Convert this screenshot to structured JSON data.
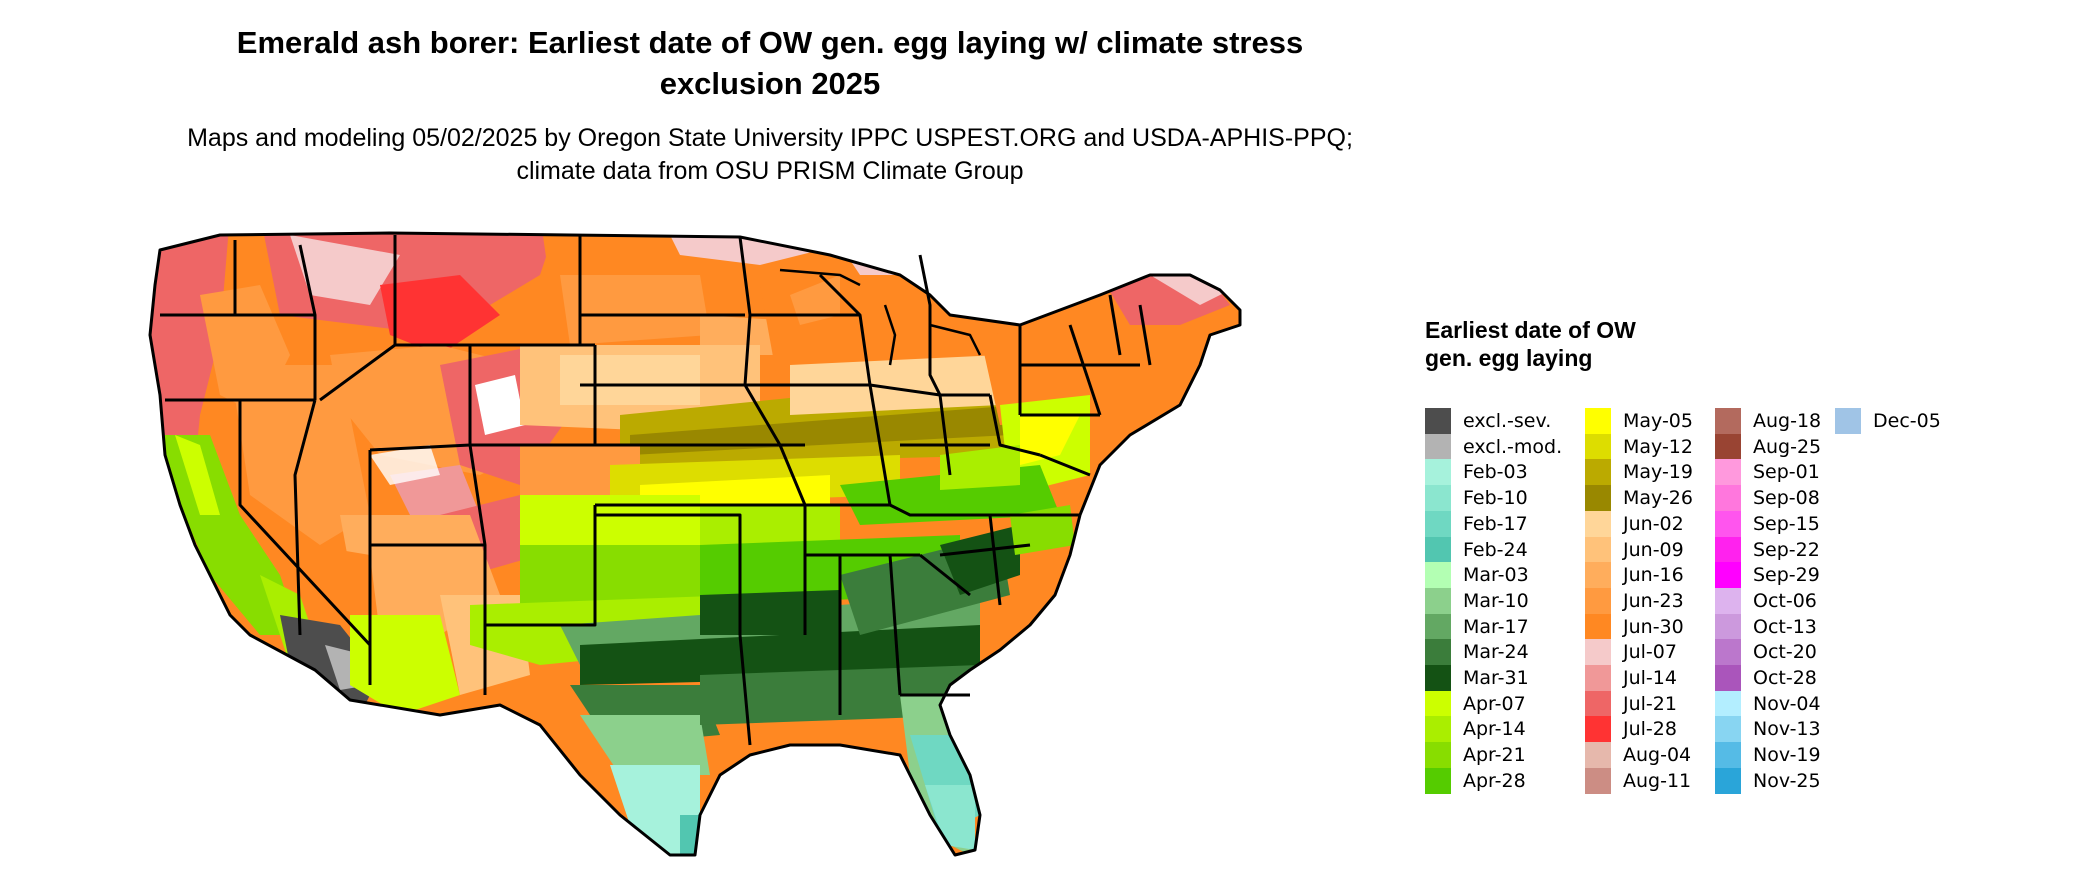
{
  "title": "Emerald ash borer: Earliest date of OW gen. egg laying w/ climate stress exclusion 2025",
  "subtitle": "Maps and modeling 05/02/2025 by Oregon State University IPPC USPEST.ORG and USDA-APHIS-PPQ; climate data from OSU PRISM Climate Group",
  "legend": {
    "title": "Earliest date of OW gen. egg laying",
    "columns": [
      [
        {
          "label": "excl.-sev.",
          "color": "#4d4d4d"
        },
        {
          "label": "excl.-mod.",
          "color": "#b3b3b3"
        },
        {
          "label": "Feb-03",
          "color": "#a6f2dc"
        },
        {
          "label": "Feb-10",
          "color": "#8be6cf"
        },
        {
          "label": "Feb-17",
          "color": "#6fd8c2"
        },
        {
          "label": "Feb-24",
          "color": "#52c6b0"
        },
        {
          "label": "Mar-03",
          "color": "#b3ffb3"
        },
        {
          "label": "Mar-10",
          "color": "#8cd08c"
        },
        {
          "label": "Mar-17",
          "color": "#63a863"
        },
        {
          "label": "Mar-24",
          "color": "#3b7d3b"
        },
        {
          "label": "Mar-31",
          "color": "#145214"
        },
        {
          "label": "Apr-07",
          "color": "#ccff00"
        },
        {
          "label": "Apr-14",
          "color": "#aaee00"
        },
        {
          "label": "Apr-21",
          "color": "#88dd00"
        },
        {
          "label": "Apr-28",
          "color": "#55cc00"
        }
      ],
      [
        {
          "label": "May-05",
          "color": "#ffff00"
        },
        {
          "label": "May-12",
          "color": "#dddd00"
        },
        {
          "label": "May-19",
          "color": "#bbaa00"
        },
        {
          "label": "May-26",
          "color": "#998800"
        },
        {
          "label": "Jun-02",
          "color": "#ffd699"
        },
        {
          "label": "Jun-09",
          "color": "#ffc27a"
        },
        {
          "label": "Jun-16",
          "color": "#ffad5c"
        },
        {
          "label": "Jun-23",
          "color": "#ff9a40"
        },
        {
          "label": "Jun-30",
          "color": "#ff8822"
        },
        {
          "label": "Jul-07",
          "color": "#f5caca"
        },
        {
          "label": "Jul-14",
          "color": "#f09898"
        },
        {
          "label": "Jul-21",
          "color": "#ee6666"
        },
        {
          "label": "Jul-28",
          "color": "#ff3333"
        },
        {
          "label": "Aug-04",
          "color": "#e6b8ac"
        },
        {
          "label": "Aug-11",
          "color": "#cc8d84"
        }
      ],
      [
        {
          "label": "Aug-18",
          "color": "#b36a5e"
        },
        {
          "label": "Aug-25",
          "color": "#994433"
        },
        {
          "label": "Sep-01",
          "color": "#ff99dd"
        },
        {
          "label": "Sep-08",
          "color": "#ff77dd"
        },
        {
          "label": "Sep-15",
          "color": "#ff55ee"
        },
        {
          "label": "Sep-22",
          "color": "#ff22ee"
        },
        {
          "label": "Sep-29",
          "color": "#ff00ff"
        },
        {
          "label": "Oct-06",
          "color": "#ddb3ee"
        },
        {
          "label": "Oct-13",
          "color": "#cc99dd"
        },
        {
          "label": "Oct-20",
          "color": "#bb77cc"
        },
        {
          "label": "Oct-28",
          "color": "#aa55bb"
        },
        {
          "label": "Nov-04",
          "color": "#b3eeff"
        },
        {
          "label": "Nov-13",
          "color": "#88d5f2"
        },
        {
          "label": "Nov-19",
          "color": "#55bbe6"
        },
        {
          "label": "Nov-25",
          "color": "#2aa5d9"
        }
      ],
      [
        {
          "label": "Dec-05",
          "color": "#a0c4e6"
        }
      ]
    ]
  }
}
